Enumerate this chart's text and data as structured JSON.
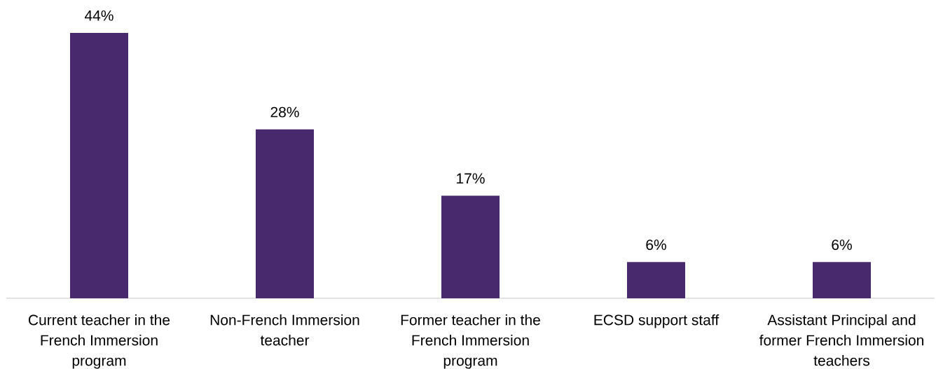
{
  "chart_data": {
    "type": "bar",
    "categories": [
      "Current teacher in the French Immersion program",
      "Non-French Immersion teacher",
      "Former teacher in the French Immersion program",
      "ECSD support staff",
      "Assistant Principal and former French Immersion teachers"
    ],
    "values": [
      44,
      28,
      17,
      6,
      6
    ],
    "color": "#48296e",
    "value_labels": [
      "44%",
      "28%",
      "17%",
      "6%",
      "6%"
    ]
  }
}
